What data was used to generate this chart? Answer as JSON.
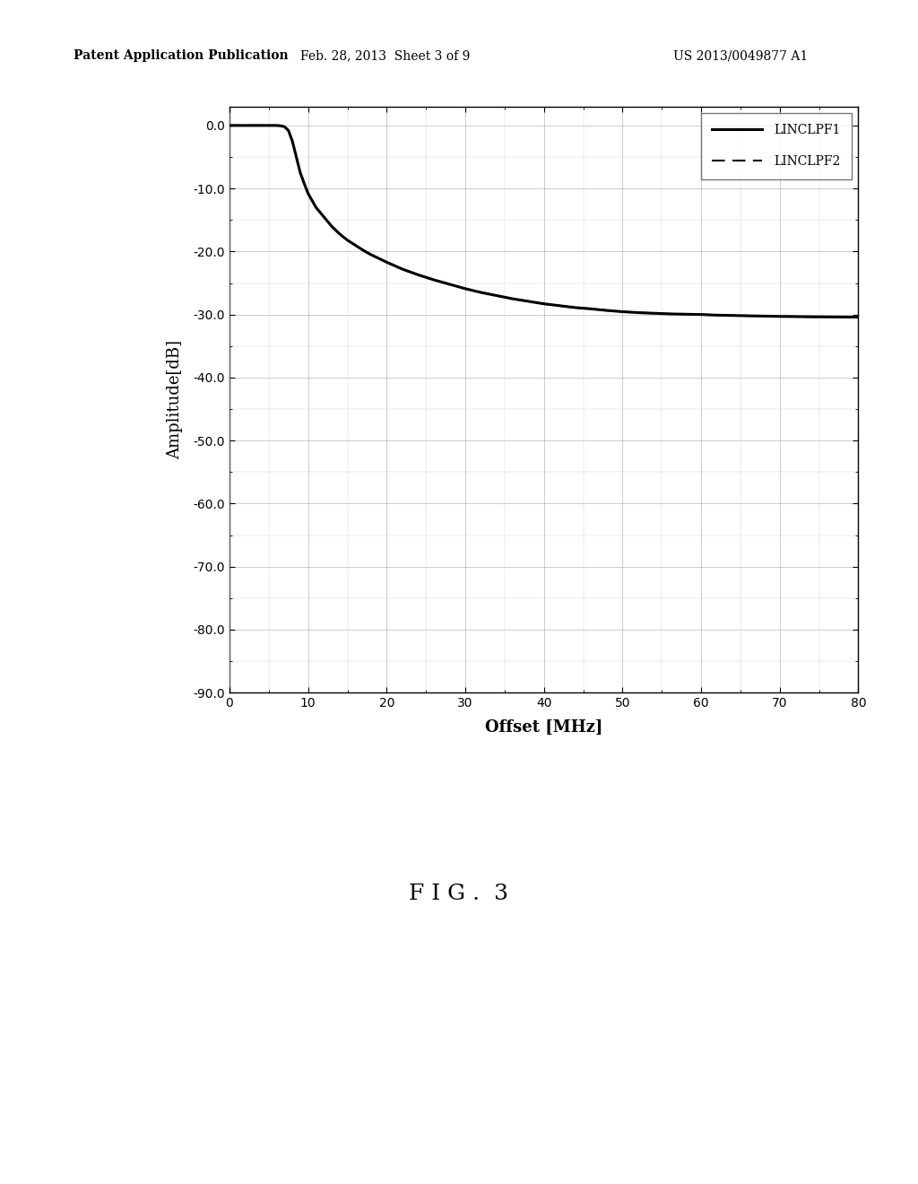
{
  "header_left": "Patent Application Publication",
  "header_mid": "Feb. 28, 2013  Sheet 3 of 9",
  "header_right": "US 2013/0049877 A1",
  "fig_caption": "F I G .  3",
  "xlabel": "Offset [MHz]",
  "ylabel": "Amplitude[dB]",
  "xlim": [
    0,
    80
  ],
  "ylim": [
    -90,
    3
  ],
  "xticks": [
    0,
    10,
    20,
    30,
    40,
    50,
    60,
    70,
    80
  ],
  "yticks": [
    0.0,
    -10.0,
    -20.0,
    -30.0,
    -40.0,
    -50.0,
    -60.0,
    -70.0,
    -80.0,
    -90.0
  ],
  "ytick_labels": [
    "0.0",
    "-10.0",
    "-20.0",
    "-30.0",
    "-40.0",
    "-50.0",
    "-60.0",
    "-70.0",
    "-80.0",
    "-90.0"
  ],
  "line1_label": "LINCLPF1",
  "line2_label": "LINCLPF2",
  "line_color": "#000000",
  "bg_color": "#ffffff",
  "grid_color": "#b0b0b0",
  "curve_x": [
    0,
    1,
    2,
    3,
    4,
    5,
    6,
    6.5,
    7,
    7.5,
    8,
    8.5,
    9,
    9.5,
    10,
    11,
    12,
    13,
    14,
    15,
    16,
    17,
    18,
    19,
    20,
    22,
    24,
    26,
    28,
    30,
    32,
    34,
    36,
    38,
    40,
    42,
    44,
    46,
    48,
    50,
    52,
    54,
    56,
    58,
    60,
    62,
    64,
    66,
    68,
    70,
    72,
    74,
    76,
    78,
    80
  ],
  "curve_y": [
    0.0,
    0.0,
    0.0,
    0.0,
    0.0,
    0.0,
    0.0,
    -0.05,
    -0.2,
    -0.8,
    -2.5,
    -5.0,
    -7.5,
    -9.2,
    -10.8,
    -13.0,
    -14.5,
    -16.0,
    -17.2,
    -18.2,
    -19.0,
    -19.8,
    -20.5,
    -21.1,
    -21.7,
    -22.8,
    -23.7,
    -24.5,
    -25.2,
    -25.9,
    -26.5,
    -27.0,
    -27.5,
    -27.9,
    -28.3,
    -28.6,
    -28.9,
    -29.1,
    -29.35,
    -29.55,
    -29.7,
    -29.8,
    -29.9,
    -29.95,
    -30.0,
    -30.1,
    -30.15,
    -30.2,
    -30.25,
    -30.3,
    -30.33,
    -30.36,
    -30.38,
    -30.4,
    -30.42
  ],
  "header_fontsize": 10,
  "axis_label_fontsize": 13,
  "tick_fontsize": 10,
  "legend_fontsize": 10,
  "caption_fontsize": 18
}
